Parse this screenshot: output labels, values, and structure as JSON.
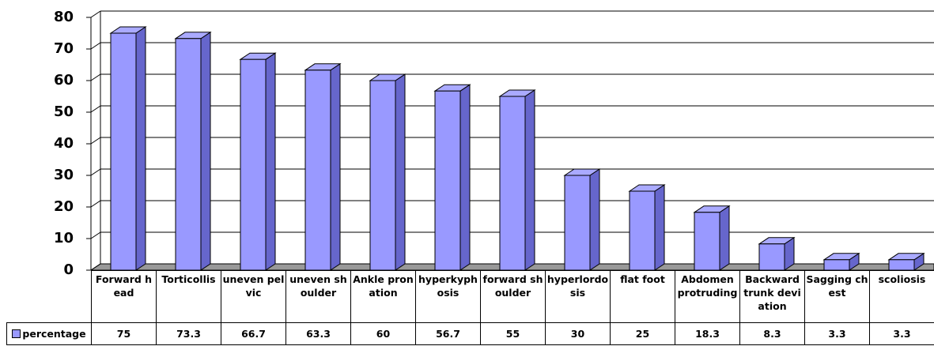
{
  "chart_data": {
    "type": "bar3d",
    "categories": [
      "Forward head",
      "Torticollis",
      "uneven pelvic",
      "uneven shoulder",
      "Ankle pronation",
      "hyperkyphosis",
      "forward shoulder",
      "hyperlordosis",
      "flat foot",
      "Abdomen protruding",
      "Backward trunk deviation",
      "Sagging chest",
      "scoliosis"
    ],
    "series": [
      {
        "name": "percentage",
        "color": "#9999ff",
        "values": [
          75,
          73.3,
          66.7,
          63.3,
          60,
          56.7,
          55,
          30,
          25,
          18.3,
          8.3,
          3.3,
          3.3
        ]
      }
    ],
    "ylim": [
      0,
      80
    ],
    "yticks": [
      0,
      10,
      20,
      30,
      40,
      50,
      60,
      70,
      80
    ],
    "grid": true
  }
}
